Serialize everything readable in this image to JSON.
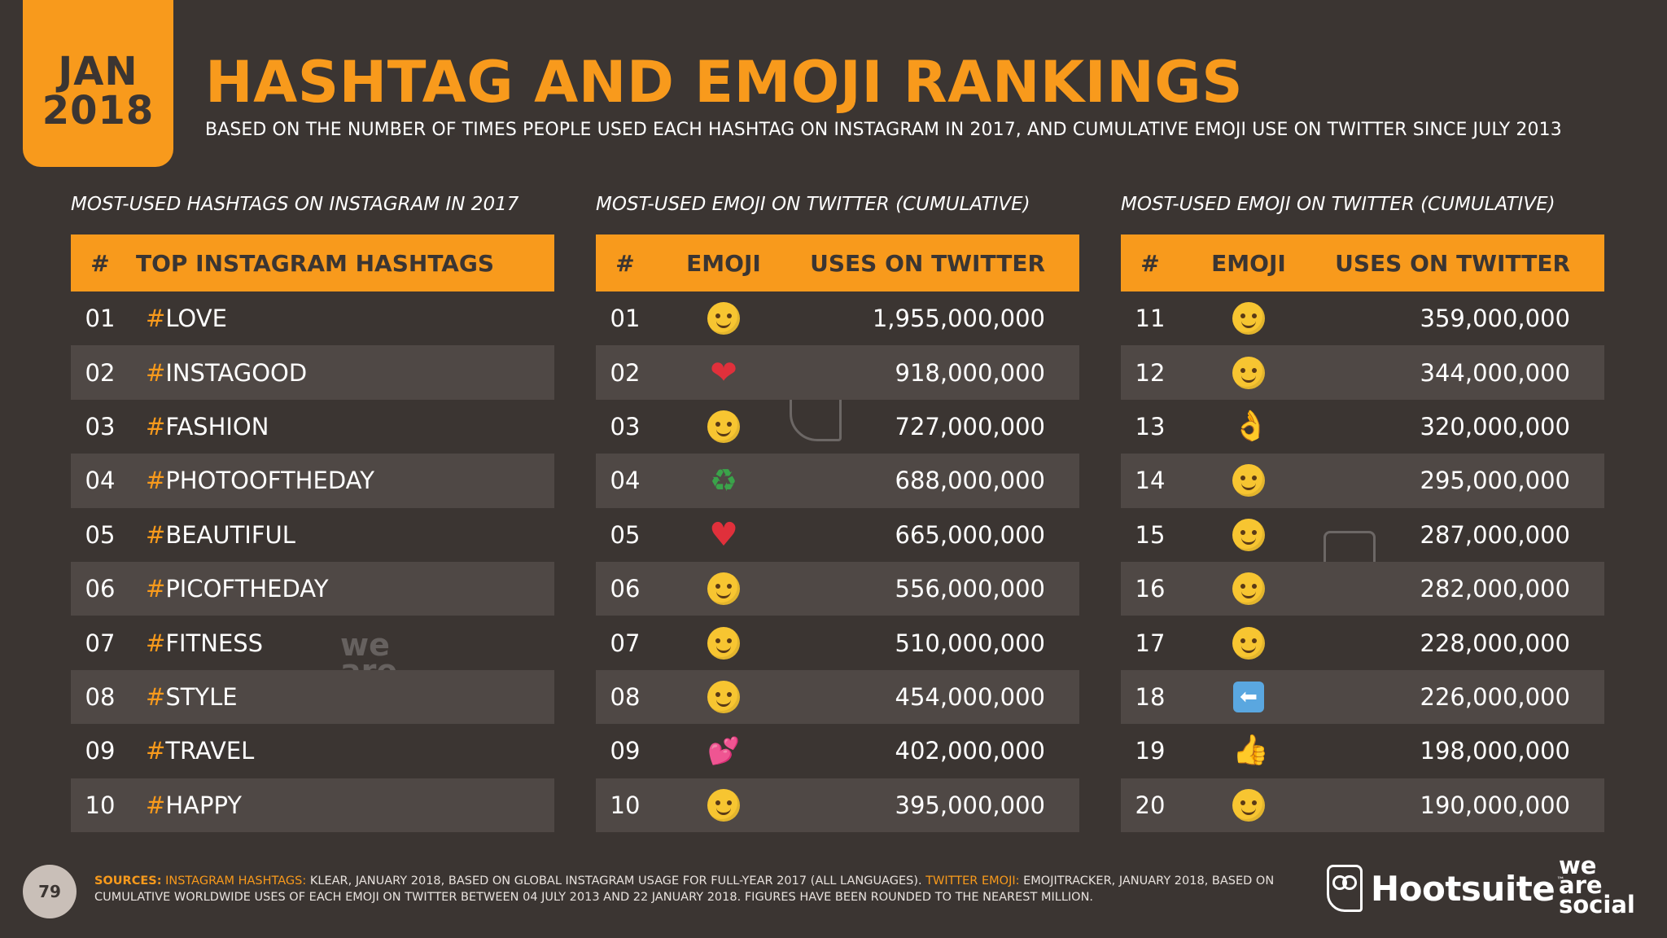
{
  "header": {
    "date_line1": "JAN",
    "date_line2": "2018",
    "title": "HASHTAG AND EMOJI RANKINGS",
    "subtitle": "BASED ON THE NUMBER OF TIMES PEOPLE USED EACH HASHTAG ON INSTAGRAM IN 2017, AND CUMULATIVE EMOJI USE ON TWITTER SINCE JULY 2013"
  },
  "hashtags": {
    "caption": "MOST-USED HASHTAGS ON INSTAGRAM IN 2017",
    "col_rank": "#",
    "col_tag": "TOP INSTAGRAM HASHTAGS",
    "rows": [
      {
        "rank": "01",
        "hash": "#",
        "tag": "LOVE"
      },
      {
        "rank": "02",
        "hash": "#",
        "tag": "INSTAGOOD"
      },
      {
        "rank": "03",
        "hash": "#",
        "tag": "FASHION"
      },
      {
        "rank": "04",
        "hash": "#",
        "tag": "PHOTOOFTHEDAY"
      },
      {
        "rank": "05",
        "hash": "#",
        "tag": "BEAUTIFUL"
      },
      {
        "rank": "06",
        "hash": "#",
        "tag": "PICOFTHEDAY"
      },
      {
        "rank": "07",
        "hash": "#",
        "tag": "FITNESS"
      },
      {
        "rank": "08",
        "hash": "#",
        "tag": "STYLE"
      },
      {
        "rank": "09",
        "hash": "#",
        "tag": "TRAVEL"
      },
      {
        "rank": "10",
        "hash": "#",
        "tag": "HAPPY"
      }
    ]
  },
  "emoji_left": {
    "caption": "MOST-USED EMOJI ON TWITTER (CUMULATIVE)",
    "col_rank": "#",
    "col_emoji": "EMOJI",
    "col_uses": "USES ON TWITTER",
    "rows": [
      {
        "rank": "01",
        "emoji": "face-with-tears-of-joy",
        "uses": "1,955,000,000"
      },
      {
        "rank": "02",
        "emoji": "red-heart",
        "uses": "918,000,000"
      },
      {
        "rank": "03",
        "emoji": "heart-eyes",
        "uses": "727,000,000"
      },
      {
        "rank": "04",
        "emoji": "recycle",
        "uses": "688,000,000"
      },
      {
        "rank": "05",
        "emoji": "heart-suit",
        "uses": "665,000,000"
      },
      {
        "rank": "06",
        "emoji": "loudly-crying-face",
        "uses": "556,000,000"
      },
      {
        "rank": "07",
        "emoji": "smiling-face",
        "uses": "510,000,000"
      },
      {
        "rank": "08",
        "emoji": "unamused-face",
        "uses": "454,000,000"
      },
      {
        "rank": "09",
        "emoji": "two-hearts",
        "uses": "402,000,000"
      },
      {
        "rank": "10",
        "emoji": "face-blowing-kiss",
        "uses": "395,000,000"
      }
    ]
  },
  "emoji_right": {
    "caption": "MOST-USED EMOJI ON TWITTER (CUMULATIVE)",
    "col_rank": "#",
    "col_emoji": "EMOJI",
    "col_uses": "USES ON TWITTER",
    "rows": [
      {
        "rank": "11",
        "emoji": "weary-face",
        "uses": "359,000,000"
      },
      {
        "rank": "12",
        "emoji": "blushing-face",
        "uses": "344,000,000"
      },
      {
        "rank": "13",
        "emoji": "ok-hand",
        "uses": "320,000,000"
      },
      {
        "rank": "14",
        "emoji": "pensive-face",
        "uses": "295,000,000"
      },
      {
        "rank": "15",
        "emoji": "smirking-face",
        "uses": "287,000,000"
      },
      {
        "rank": "16",
        "emoji": "grinning-face",
        "uses": "282,000,000"
      },
      {
        "rank": "17",
        "emoji": "winking-face",
        "uses": "228,000,000"
      },
      {
        "rank": "18",
        "emoji": "left-arrow",
        "uses": "226,000,000"
      },
      {
        "rank": "19",
        "emoji": "thumbs-up",
        "uses": "198,000,000"
      },
      {
        "rank": "20",
        "emoji": "relieved-face",
        "uses": "190,000,000"
      }
    ]
  },
  "footer": {
    "page_number": "79",
    "sources_label": "SOURCES:",
    "ig_label": "INSTAGRAM HASHTAGS:",
    "ig_text": "KLEAR, JANUARY 2018, BASED ON GLOBAL INSTAGRAM USAGE FOR FULL-YEAR 2017 (ALL LANGUAGES).",
    "tw_label": "TWITTER EMOJI:",
    "tw_text": "EMOJITRACKER, JANUARY 2018, BASED ON CUMULATIVE WORLDWIDE USES OF EACH EMOJI ON TWITTER BETWEEN 04 JULY 2013 AND 22 JANUARY 2018. FIGURES HAVE BEEN ROUNDED TO THE NEAREST MILLION.",
    "hootsuite": "Hootsuite",
    "tm": "™",
    "was_1": "we",
    "was_2": "are",
    "was_3": "social"
  },
  "colors": {
    "accent": "#f89a1c",
    "background": "#3b3532",
    "row_alt": "#4f4845"
  }
}
